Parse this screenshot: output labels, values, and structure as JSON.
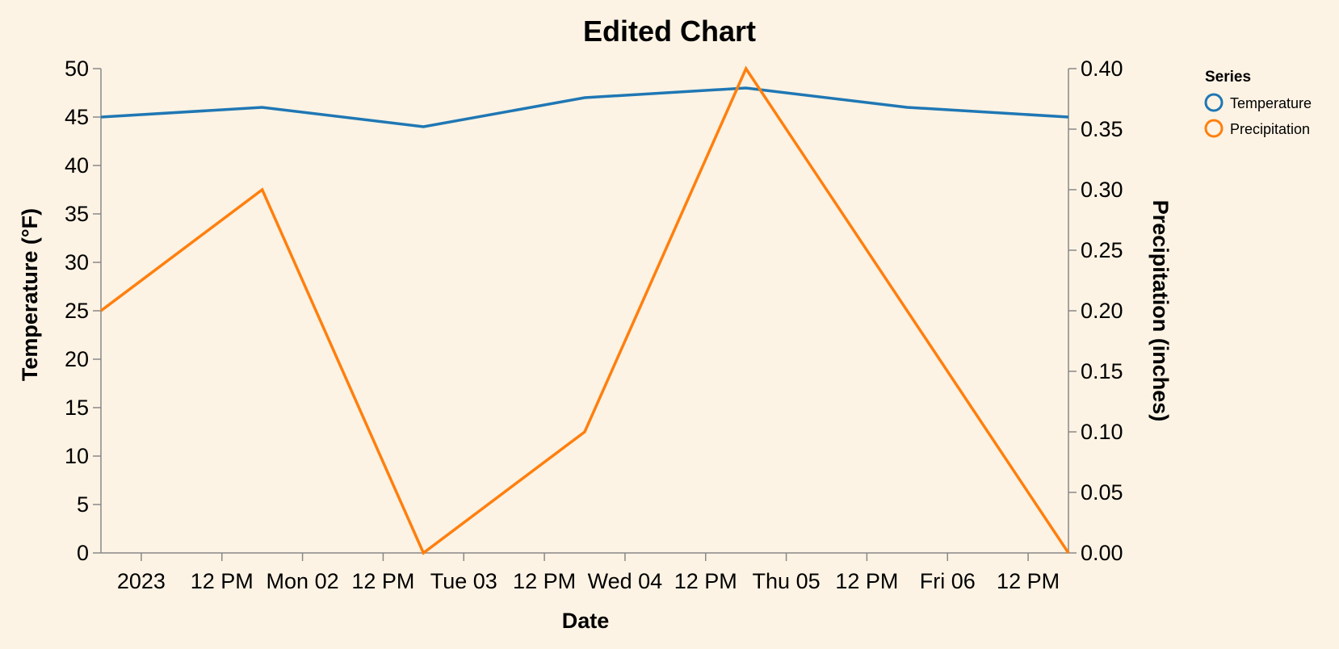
{
  "chart_data": {
    "type": "line",
    "title": "Edited Chart",
    "xlabel": "Date",
    "ylabel_left": "Temperature (°F)",
    "ylabel_right": "Precipitation (inches)",
    "x": [
      "2023-01-01",
      "2023-01-02",
      "2023-01-03",
      "2023-01-04",
      "2023-01-05",
      "2023-01-06",
      "2023-01-07"
    ],
    "x_tick_labels": [
      "2023",
      "12 PM",
      "Mon 02",
      "12 PM",
      "Tue 03",
      "12 PM",
      "Wed 04",
      "12 PM",
      "Thu 05",
      "12 PM",
      "Fri 06",
      "12 PM"
    ],
    "ylim_left": [
      0,
      50
    ],
    "yticks_left": [
      "0",
      "5",
      "10",
      "15",
      "20",
      "25",
      "30",
      "35",
      "40",
      "45",
      "50"
    ],
    "ylim_right": [
      0,
      0.4
    ],
    "yticks_right": [
      "0.00",
      "0.05",
      "0.10",
      "0.15",
      "0.20",
      "0.25",
      "0.30",
      "0.35",
      "0.40"
    ],
    "series": [
      {
        "name": "Temperature",
        "axis": "left",
        "color": "#1f77b4",
        "values": [
          45,
          46,
          44,
          47,
          48,
          46,
          45
        ]
      },
      {
        "name": "Precipitation",
        "axis": "right",
        "color": "#ff7f0e",
        "values": [
          0.2,
          0.3,
          0.0,
          0.1,
          0.4,
          0.2,
          0.0
        ]
      }
    ],
    "legend": {
      "title": "Series",
      "placement": "top-right"
    },
    "grid": false
  }
}
